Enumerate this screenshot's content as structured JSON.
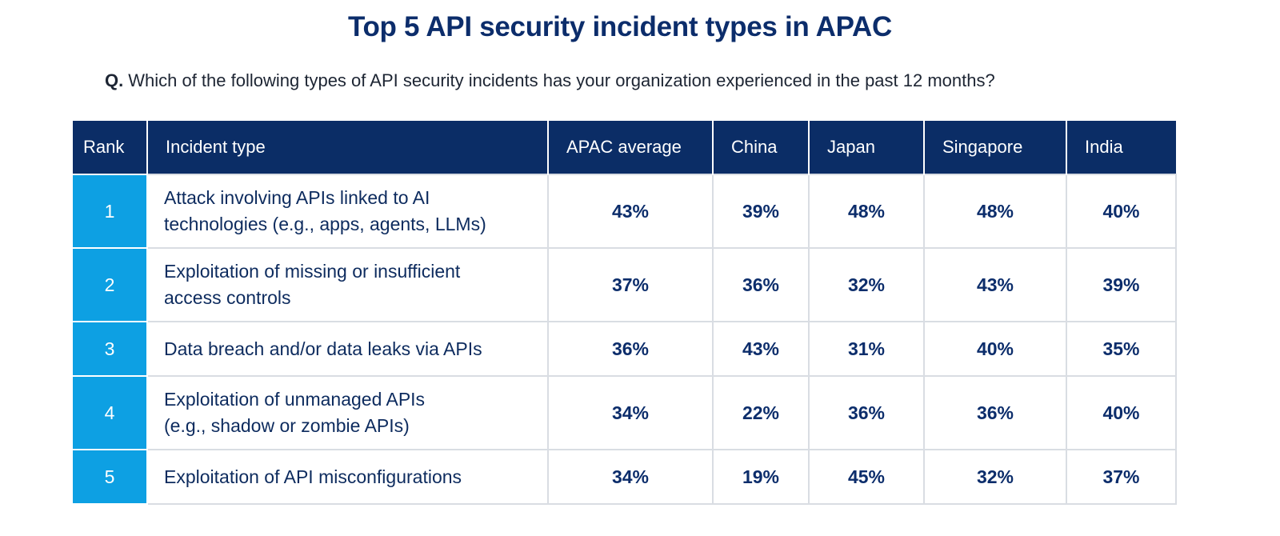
{
  "title": "Top 5 API security incident types in APAC",
  "question": {
    "prefix": "Q.",
    "text": "Which of the following types of API security incidents has your organization experienced in the past 12 months?"
  },
  "colors": {
    "header_bg": "#0b2d66",
    "rank_bg": "#0da0e3",
    "text": "#0c2d6b",
    "grid": "#d9dde3"
  },
  "chart_data": {
    "type": "table",
    "title": "Top 5 API security incident types in APAC",
    "columns": [
      "Rank",
      "Incident type",
      "APAC average",
      "China",
      "Japan",
      "Singapore",
      "India"
    ],
    "rows": [
      {
        "rank": "1",
        "incident_lines": [
          "Attack involving APIs linked to AI",
          "technologies (e.g., apps, agents, LLMs)"
        ],
        "values": [
          "43%",
          "39%",
          "48%",
          "48%",
          "40%"
        ]
      },
      {
        "rank": "2",
        "incident_lines": [
          "Exploitation of missing or insufficient",
          "access controls"
        ],
        "values": [
          "37%",
          "36%",
          "32%",
          "43%",
          "39%"
        ]
      },
      {
        "rank": "3",
        "incident_lines": [
          "Data breach and/or data leaks via APIs"
        ],
        "values": [
          "36%",
          "43%",
          "31%",
          "40%",
          "35%"
        ]
      },
      {
        "rank": "4",
        "incident_lines": [
          "Exploitation of unmanaged APIs",
          "(e.g., shadow or zombie APIs)"
        ],
        "values": [
          "34%",
          "22%",
          "36%",
          "36%",
          "40%"
        ]
      },
      {
        "rank": "5",
        "incident_lines": [
          "Exploitation of API misconfigurations"
        ],
        "values": [
          "34%",
          "19%",
          "45%",
          "32%",
          "37%"
        ]
      }
    ]
  }
}
